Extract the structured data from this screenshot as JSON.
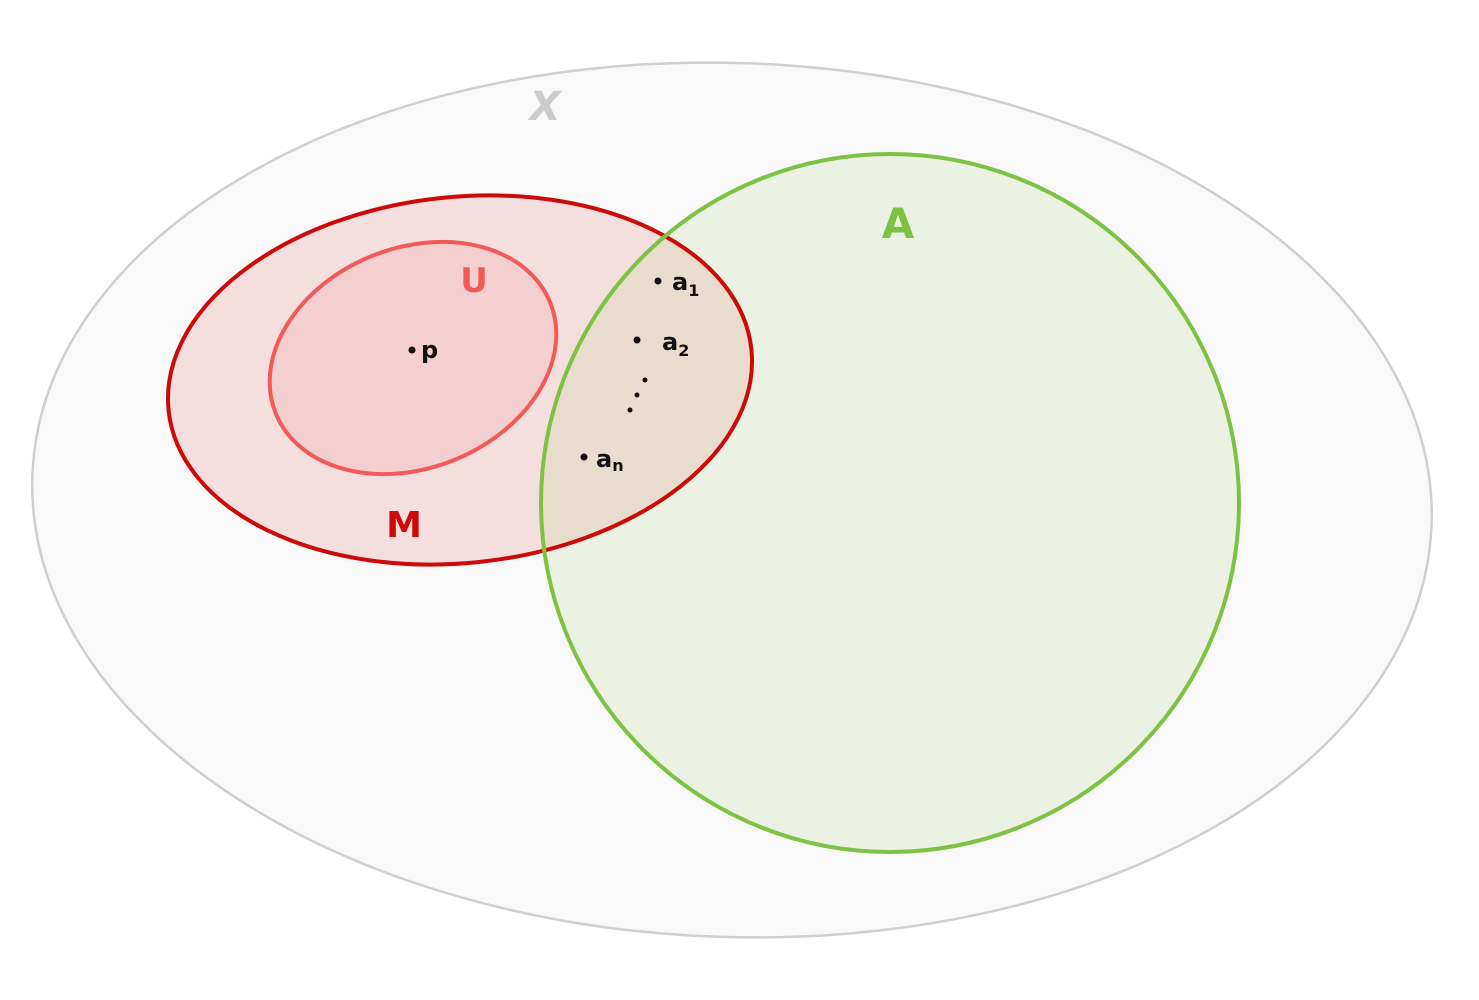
{
  "sets": {
    "x": {
      "label": "X",
      "stroke": "#cfcfcf",
      "fill": "#f9f9f9",
      "text_color": "#cccccc"
    },
    "m": {
      "label": "M",
      "stroke": "#cc0a0a",
      "fill": "#f5dede",
      "text_color": "#cc0a0a"
    },
    "u": {
      "label": "U",
      "stroke": "#f25a5a",
      "fill": "#f4cfcf",
      "text_color": "#f25a5a"
    },
    "a": {
      "label": "A",
      "stroke": "#7dc242",
      "fill": "#ebf2e3",
      "text_color": "#7dc242"
    },
    "intersection_fill": "#e8dccd"
  },
  "points": {
    "p": "p",
    "a1": "a",
    "a1_sub": "1",
    "a2": "a",
    "a2_sub": "2",
    "an": "a",
    "an_sub": "n"
  },
  "point_color": "#111111"
}
